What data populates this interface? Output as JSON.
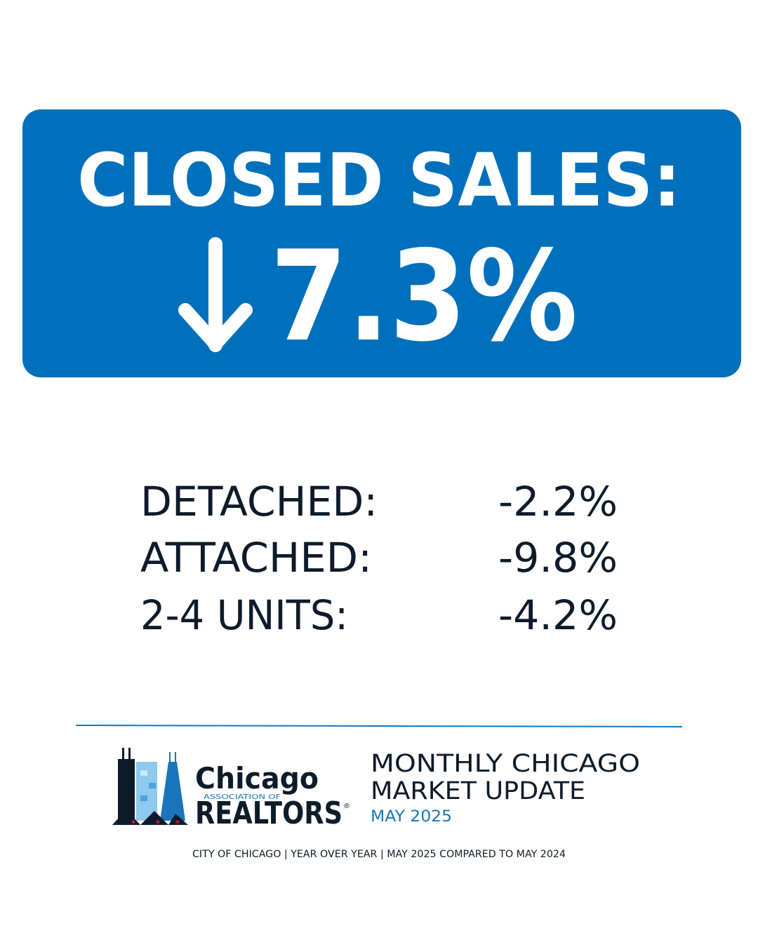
{
  "header": {
    "title": "CLOSED SALES:",
    "change": "7.3%"
  },
  "breakdown": [
    {
      "label": "DETACHED:",
      "value": "-2.2%"
    },
    {
      "label": "ATTACHED:",
      "value": "-9.8%"
    },
    {
      "label": "2-4 UNITS:",
      "value": "-4.2%"
    }
  ],
  "logo": {
    "name": "Chicago",
    "association": "ASSOCIATION OF",
    "org": "REALTORS",
    "mark": "®"
  },
  "update": {
    "line1": "MONTHLY CHICAGO",
    "line2": "MARKET UPDATE",
    "date": "MAY 2025"
  },
  "footer": "CITY OF CHICAGO | YEAR OVER YEAR | MAY 2025 COMPARED TO MAY 2024"
}
